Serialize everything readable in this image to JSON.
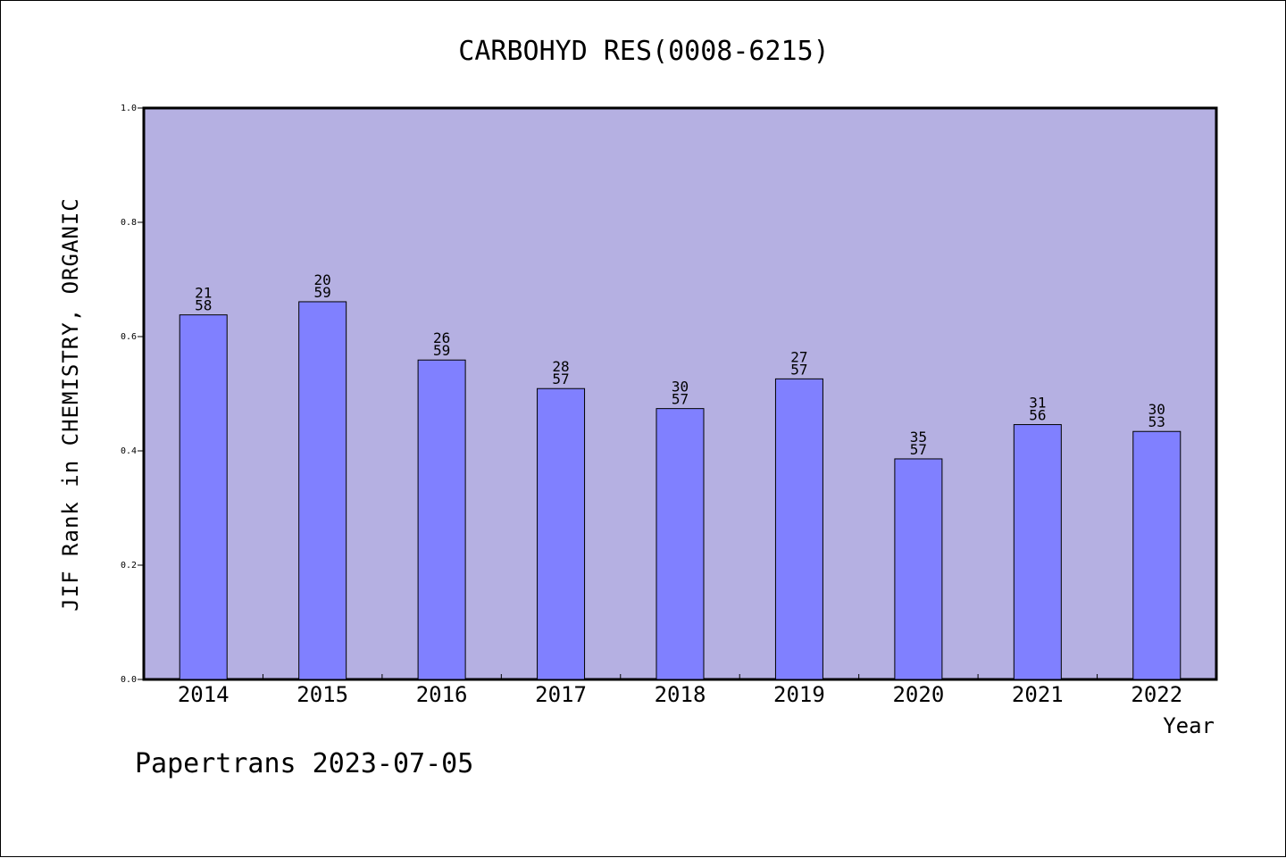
{
  "chart_data": {
    "type": "bar",
    "title": "CARBOHYD RES(0008-6215)",
    "xlabel": "Year",
    "ylabel": "JIF Rank in CHEMISTRY, ORGANIC",
    "categories": [
      "2014",
      "2015",
      "2016",
      "2017",
      "2018",
      "2019",
      "2020",
      "2021",
      "2022"
    ],
    "values": [
      0.638,
      0.661,
      0.559,
      0.509,
      0.474,
      0.526,
      0.386,
      0.446,
      0.434
    ],
    "data_labels": [
      {
        "top": "21",
        "bottom": "58"
      },
      {
        "top": "20",
        "bottom": "59"
      },
      {
        "top": "26",
        "bottom": "59"
      },
      {
        "top": "28",
        "bottom": "57"
      },
      {
        "top": "30",
        "bottom": "57"
      },
      {
        "top": "27",
        "bottom": "57"
      },
      {
        "top": "35",
        "bottom": "57"
      },
      {
        "top": "31",
        "bottom": "56"
      },
      {
        "top": "30",
        "bottom": "53"
      }
    ],
    "yticks": [
      "0.0",
      "0.2",
      "0.4",
      "0.6",
      "0.8",
      "1.0"
    ],
    "ylim": [
      0,
      1.0
    ],
    "grid": false,
    "colors": {
      "plot_background": "#b5b0e2",
      "bar_fill": "#8080ff",
      "bar_stroke": "#000000"
    }
  },
  "footer": "Papertrans 2023-07-05"
}
